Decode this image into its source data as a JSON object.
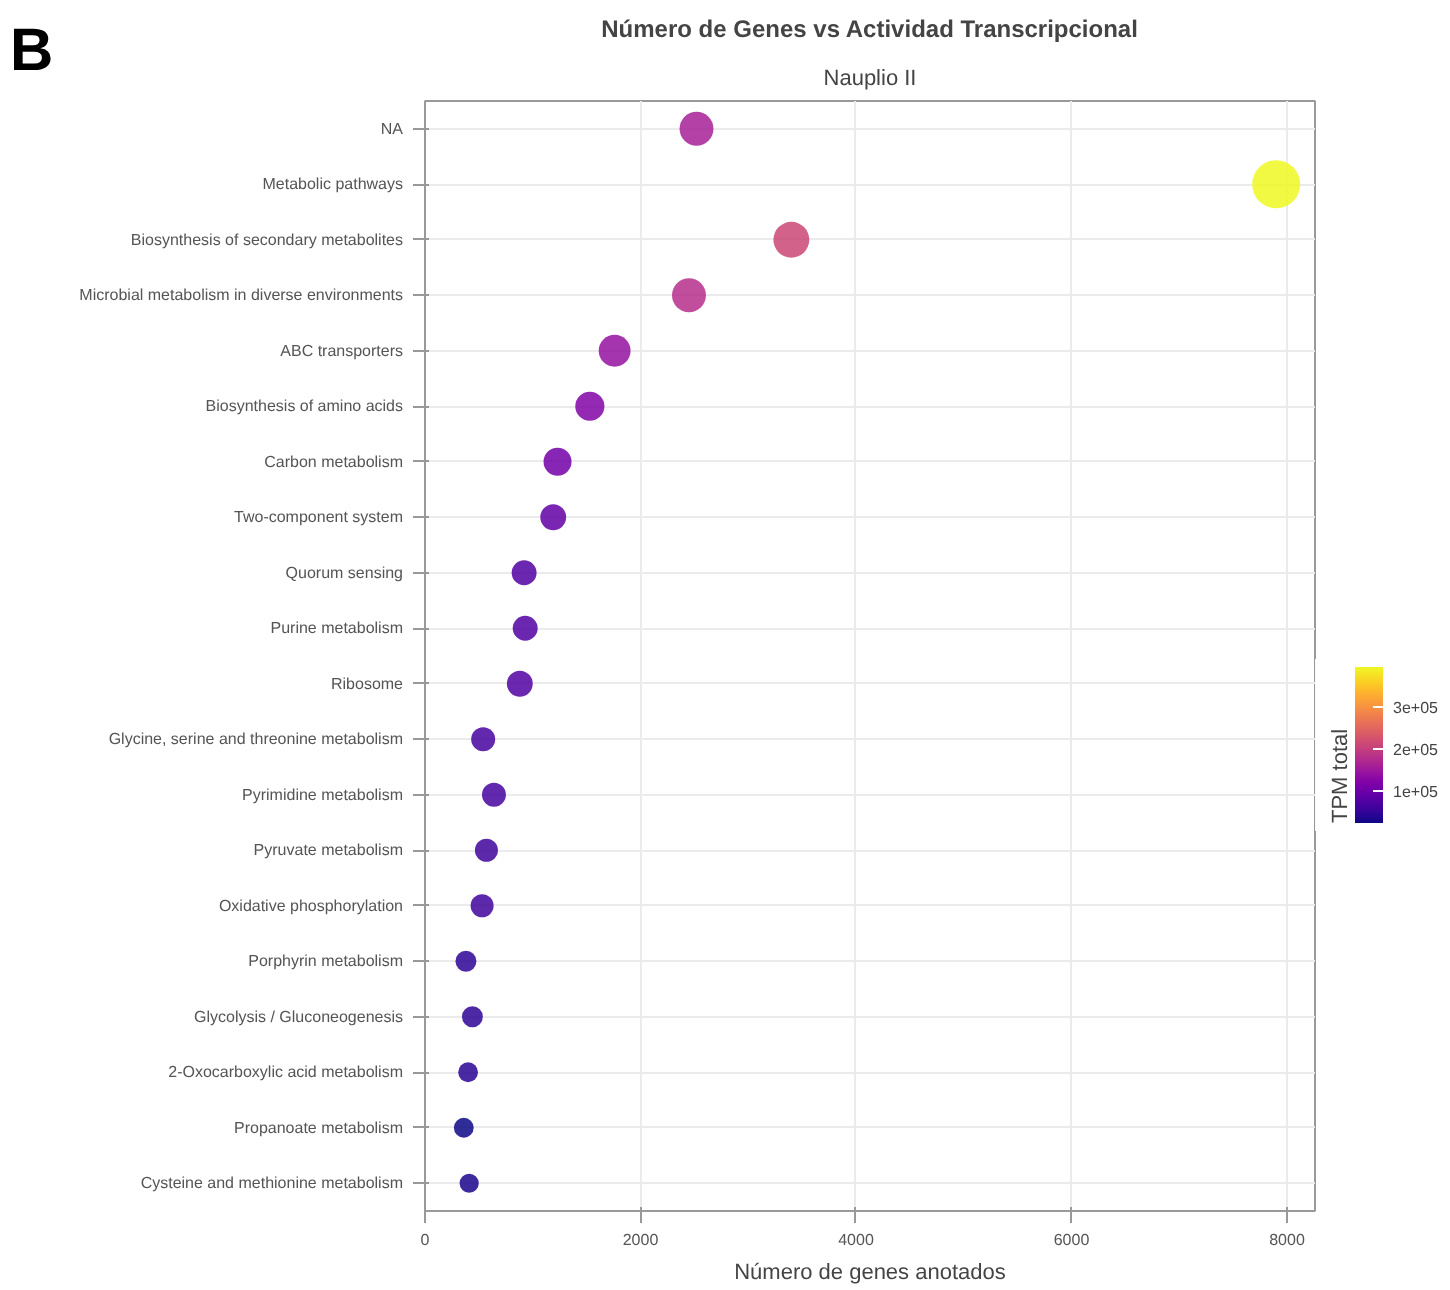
{
  "chart_data": {
    "type": "bubble",
    "title": "Número de Genes vs Actividad Transcripcional",
    "subtitle": "Nauplio II",
    "xlabel": "Número de genes anotados",
    "clabel": "TPM total",
    "annotations": [
      "B"
    ],
    "orientation": "horizontal",
    "categories": [
      "NA",
      "Metabolic pathways",
      "Biosynthesis of secondary metabolites",
      "Microbial metabolism in diverse environments",
      "ABC transporters",
      "Biosynthesis of amino acids",
      "Carbon metabolism",
      "Two-component system",
      "Quorum sensing",
      "Purine metabolism",
      "Ribosome",
      "Glycine, serine and threonine metabolism",
      "Pyrimidine metabolism",
      "Pyruvate metabolism",
      "Oxidative phosphorylation",
      "Porphyrin metabolism",
      "Glycolysis / Gluconeogenesis",
      "2-Oxocarboxylic acid metabolism",
      "Propanoate metabolism",
      "Cysteine and methionine metabolism"
    ],
    "values": [
      2520,
      7900,
      3400,
      2450,
      1760,
      1530,
      1230,
      1190,
      920,
      930,
      880,
      540,
      640,
      570,
      530,
      380,
      440,
      400,
      360,
      410
    ],
    "cvalues": [
      160000,
      397000,
      210000,
      180000,
      140000,
      120000,
      105000,
      90000,
      75000,
      75000,
      75000,
      65000,
      65000,
      60000,
      60000,
      45000,
      45000,
      40000,
      22000,
      30000
    ],
    "sizes": [
      0.5,
      1,
      0.56,
      0.5,
      0.44,
      0.37,
      0.34,
      0.29,
      0.27,
      0.27,
      0.29,
      0.25,
      0.25,
      0.23,
      0.23,
      0.19,
      0.19,
      0.17,
      0.17,
      0.16
    ],
    "clim": [
      22000,
      397000
    ],
    "cticks": [
      {
        "value": 100000,
        "label": "1e+05"
      },
      {
        "value": 200000,
        "label": "2e+05"
      },
      {
        "value": 300000,
        "label": "3e+05"
      }
    ],
    "xlim": [
      0,
      8260
    ],
    "xticks": [
      0,
      2000,
      4000,
      6000,
      8000
    ],
    "grid": true,
    "marker": "circle"
  }
}
